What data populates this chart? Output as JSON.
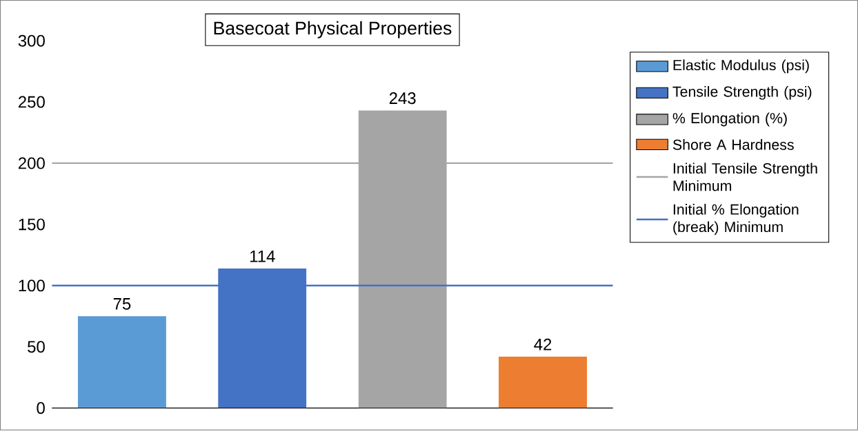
{
  "chart_data": {
    "type": "bar",
    "title": "Basecoat Physical Properties",
    "categories": [
      null,
      null,
      null,
      null
    ],
    "series": [
      {
        "name": "Elastic Modulus (psi)",
        "color": "#5b9bd5",
        "values": [
          75,
          null,
          null,
          null
        ]
      },
      {
        "name": "Tensile Strength (psi)",
        "color": "#4472c4",
        "values": [
          null,
          114,
          null,
          null
        ]
      },
      {
        "name": "% Elongation (%)",
        "color": "#a5a5a5",
        "values": [
          null,
          null,
          243,
          null
        ]
      },
      {
        "name": "Shore A Hardness",
        "color": "#ed7d31",
        "values": [
          null,
          null,
          null,
          42
        ]
      }
    ],
    "ref_lines": [
      {
        "axis": "y",
        "value": 200,
        "label": "Initial Tensile Strength Minimum",
        "color": "#a5a5a5",
        "line_style": "solid"
      },
      {
        "axis": "y",
        "value": 100,
        "label": "Initial % Elongation (break) Minimum",
        "color": "#4472c4",
        "line_style": "solid"
      }
    ],
    "ylim": [
      0,
      300
    ],
    "yticks": [
      0,
      50,
      100,
      150,
      200,
      250,
      300
    ],
    "data_labels": true,
    "legend": "right",
    "tick_labels": "y"
  }
}
